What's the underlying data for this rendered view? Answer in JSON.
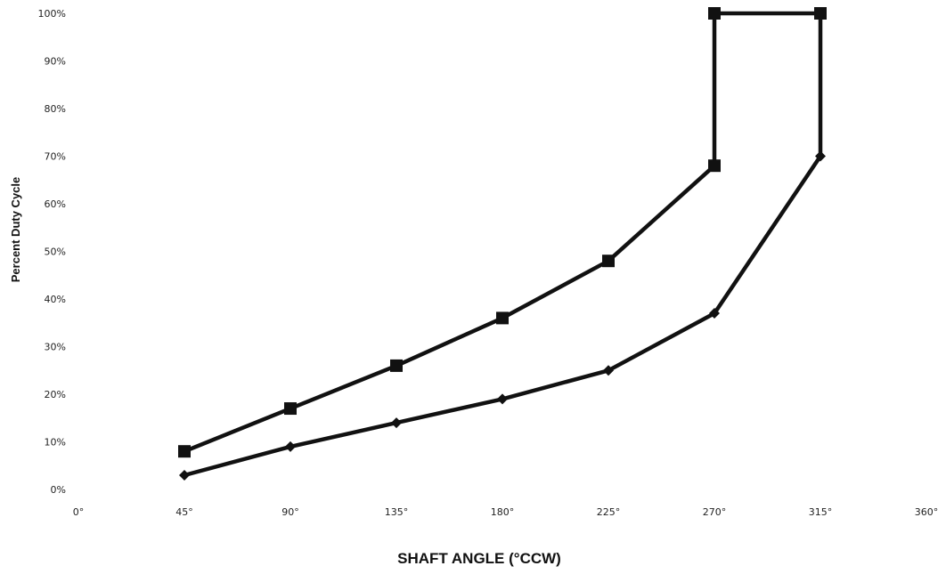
{
  "chart_data": {
    "type": "line",
    "xlabel": "SHAFT ANGLE (°CCW)",
    "ylabel": "Percent Duty Cycle",
    "xlim": [
      0,
      360
    ],
    "ylim": [
      0,
      100
    ],
    "x_ticks": [
      0,
      45,
      90,
      135,
      180,
      225,
      270,
      315,
      360
    ],
    "x_tick_labels": [
      "0°",
      "45°",
      "90°",
      "135°",
      "180°",
      "225°",
      "270°",
      "315°",
      "360°"
    ],
    "y_ticks": [
      0,
      10,
      20,
      30,
      40,
      50,
      60,
      70,
      80,
      90,
      100
    ],
    "y_tick_labels": [
      "0%",
      "10%",
      "20%",
      "30%",
      "40%",
      "50%",
      "60%",
      "70%",
      "80%",
      "90%",
      "100%"
    ],
    "grid": false,
    "series": [
      {
        "marker": "square",
        "color": "#111111",
        "points": [
          {
            "x": 45,
            "y": 8
          },
          {
            "x": 90,
            "y": 17
          },
          {
            "x": 135,
            "y": 26
          },
          {
            "x": 180,
            "y": 36
          },
          {
            "x": 225,
            "y": 48
          },
          {
            "x": 270,
            "y": 68
          },
          {
            "x": 270,
            "y": 100
          },
          {
            "x": 315,
            "y": 100
          }
        ]
      },
      {
        "marker": "diamond",
        "color": "#111111",
        "points": [
          {
            "x": 45,
            "y": 3
          },
          {
            "x": 90,
            "y": 9
          },
          {
            "x": 135,
            "y": 14
          },
          {
            "x": 180,
            "y": 19
          },
          {
            "x": 225,
            "y": 25
          },
          {
            "x": 270,
            "y": 37
          },
          {
            "x": 315,
            "y": 70
          },
          {
            "x": 315,
            "y": 100
          }
        ]
      }
    ]
  }
}
